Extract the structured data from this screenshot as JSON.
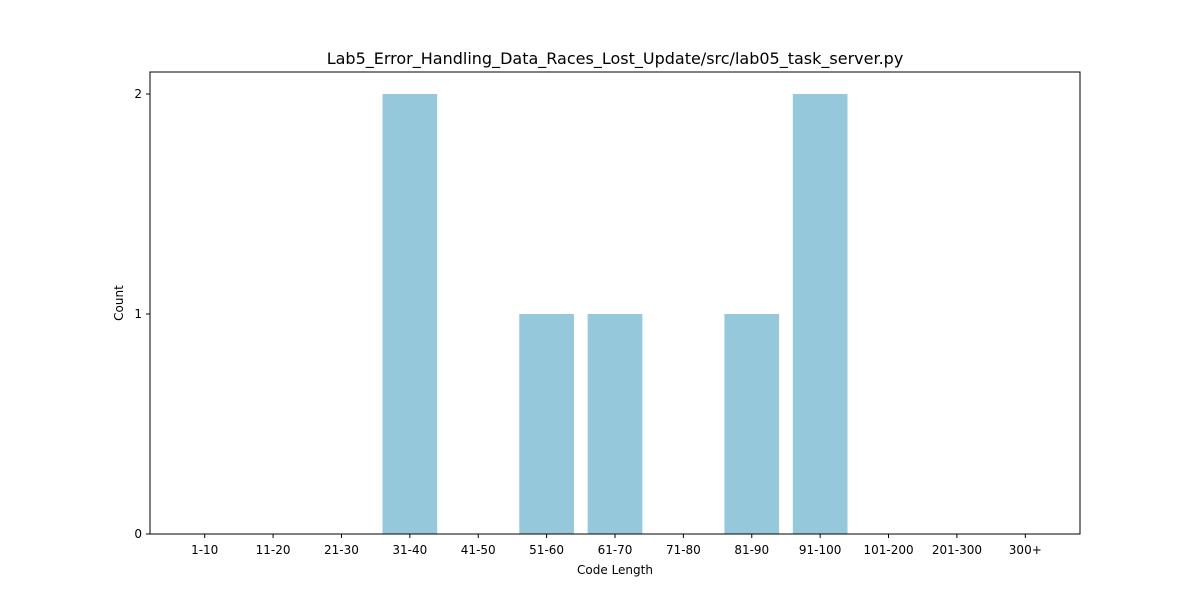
{
  "chart_data": {
    "type": "bar",
    "title": "Lab5_Error_Handling_Data_Races_Lost_Update/src/lab05_task_server.py",
    "xlabel": "Code Length",
    "ylabel": "Count",
    "categories": [
      "1-10",
      "11-20",
      "21-30",
      "31-40",
      "41-50",
      "51-60",
      "61-70",
      "71-80",
      "81-90",
      "91-100",
      "101-200",
      "201-300",
      "300+"
    ],
    "values": [
      0,
      0,
      0,
      2,
      0,
      1,
      1,
      0,
      1,
      2,
      0,
      0,
      0
    ],
    "yticks": [
      0,
      1,
      2
    ],
    "ylim": [
      0,
      2.1
    ],
    "bar_color": "#96c8dc",
    "grid": false,
    "legend": "none"
  }
}
